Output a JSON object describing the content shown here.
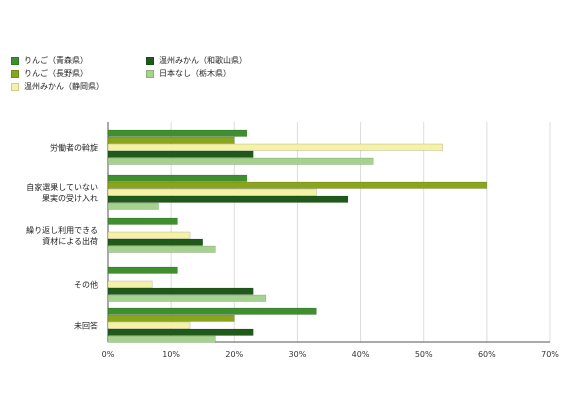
{
  "chart_data": {
    "type": "bar",
    "orientation": "horizontal",
    "categories": [
      [
        "労働者の斡旋"
      ],
      [
        "自家選果していない",
        "果実の受け入れ"
      ],
      [
        "繰り返し利用できる",
        "資材による出荷"
      ],
      [
        "その他"
      ],
      [
        "未回答"
      ]
    ],
    "series": [
      {
        "name": "りんご（青森県）",
        "color": "#3f8f2f",
        "values": [
          22,
          22,
          11,
          11,
          33
        ]
      },
      {
        "name": "りんご（長野県）",
        "color": "#8aa51c",
        "values": [
          20,
          60,
          0,
          0,
          20
        ]
      },
      {
        "name": "温州みかん（静岡県）",
        "color": "#f3f2a6",
        "values": [
          53,
          33,
          13,
          7,
          13
        ]
      },
      {
        "name": "温州みかん（和歌山県）",
        "color": "#1f5a1a",
        "values": [
          23,
          38,
          15,
          23,
          23
        ]
      },
      {
        "name": "日本なし（栃木県）",
        "color": "#a6d28f",
        "values": [
          42,
          8,
          17,
          25,
          17
        ]
      }
    ],
    "xlim": [
      0,
      70
    ],
    "xticks": [
      "0%",
      "10%",
      "20%",
      "30%",
      "40%",
      "50%",
      "60%",
      "70%"
    ],
    "grid": true,
    "legend_position": "top-left"
  }
}
